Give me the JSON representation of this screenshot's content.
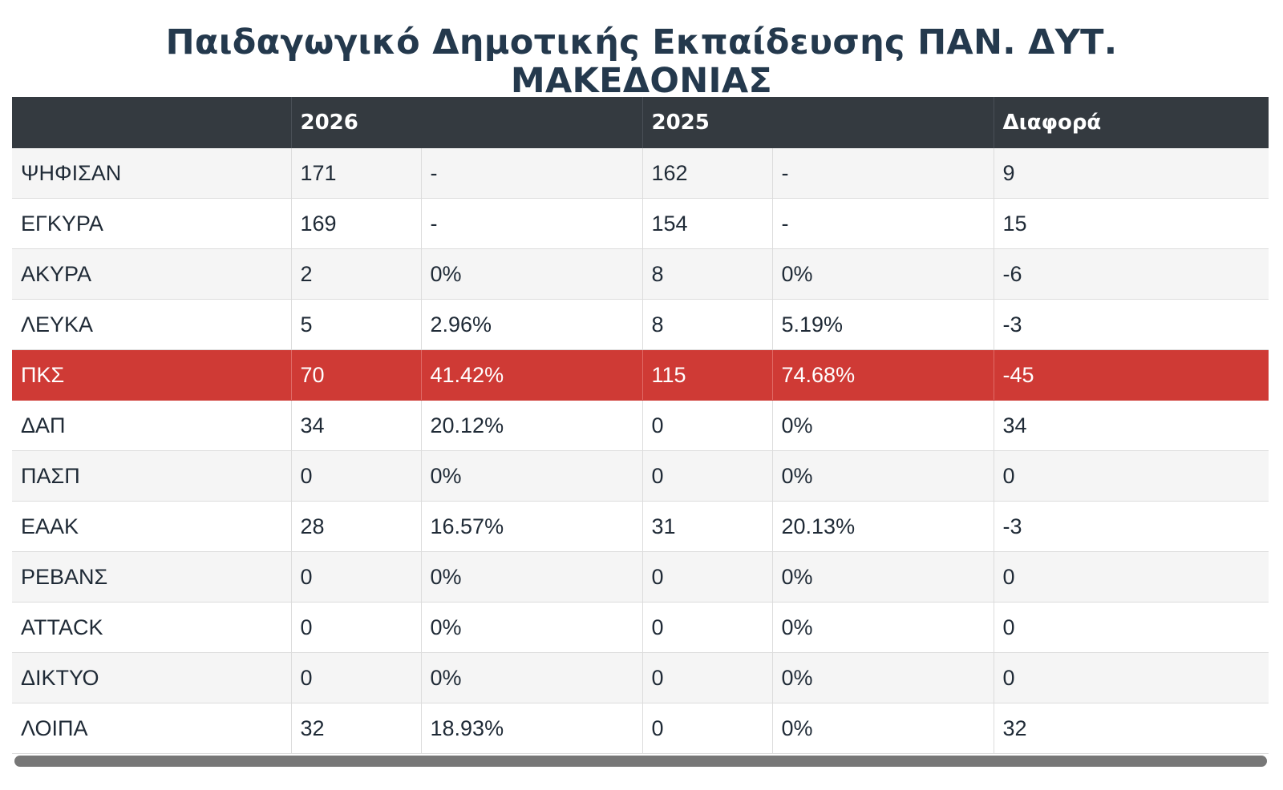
{
  "page": {
    "title_line1": "Παιδαγωγικό Δημοτικής Εκπαίδευσης ΠΑΝ. ΔΥΤ.",
    "title_line2": "ΜΑΚΕΔΟΝΙΑΣ"
  },
  "table": {
    "headers": {
      "name": "",
      "y2026": "2026",
      "y2025": "2025",
      "diff": "Διαφορά"
    },
    "rows": [
      {
        "label": "ΨΗΦΙΣΑΝ",
        "v2026": "171",
        "p2026": "-",
        "v2025": "162",
        "p2025": "-",
        "diff": "9"
      },
      {
        "label": "ΕΓΚΥΡΑ",
        "v2026": "169",
        "p2026": "-",
        "v2025": "154",
        "p2025": "-",
        "diff": "15"
      },
      {
        "label": "ΑΚΥΡΑ",
        "v2026": "2",
        "p2026": "0%",
        "v2025": "8",
        "p2025": "0%",
        "diff": "-6"
      },
      {
        "label": "ΛΕΥΚΑ",
        "v2026": "5",
        "p2026": "2.96%",
        "v2025": "8",
        "p2025": "5.19%",
        "diff": "-3"
      },
      {
        "label": "ΠΚΣ",
        "v2026": "70",
        "p2026": "41.42%",
        "v2025": "115",
        "p2025": "74.68%",
        "diff": "-45"
      },
      {
        "label": "ΔΑΠ",
        "v2026": "34",
        "p2026": "20.12%",
        "v2025": "0",
        "p2025": "0%",
        "diff": "34"
      },
      {
        "label": "ΠΑΣΠ",
        "v2026": "0",
        "p2026": "0%",
        "v2025": "0",
        "p2025": "0%",
        "diff": "0"
      },
      {
        "label": "ΕΑΑΚ",
        "v2026": "28",
        "p2026": "16.57%",
        "v2025": "31",
        "p2025": "20.13%",
        "diff": "-3"
      },
      {
        "label": "ΡΕΒΑΝΣ",
        "v2026": "0",
        "p2026": "0%",
        "v2025": "0",
        "p2025": "0%",
        "diff": "0"
      },
      {
        "label": "ΑΤΤΑCK",
        "v2026": "0",
        "p2026": "0%",
        "v2025": "0",
        "p2025": "0%",
        "diff": "0"
      },
      {
        "label": "ΔΙΚΤΥΟ",
        "v2026": "0",
        "p2026": "0%",
        "v2025": "0",
        "p2025": "0%",
        "diff": "0"
      },
      {
        "label": "ΛΟΙΠΑ",
        "v2026": "32",
        "p2026": "18.93%",
        "v2025": "0",
        "p2025": "0%",
        "diff": "32"
      }
    ]
  },
  "colors": {
    "header_bg": "#343a40",
    "highlight_row_bg": "#cf3a35",
    "title_color": "#24394d",
    "scrollbar": "#777777"
  }
}
